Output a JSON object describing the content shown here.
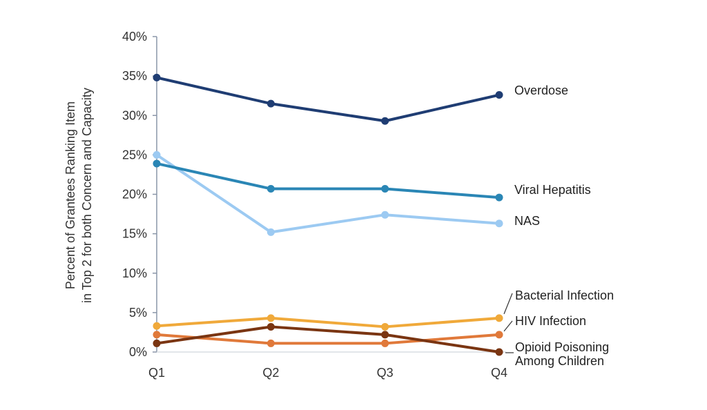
{
  "chart_data": {
    "type": "line",
    "title": "",
    "xlabel": "",
    "ylabel": [
      "Percent of Grantees Ranking Item",
      "in Top 2  for both Concern and Capacity"
    ],
    "categories": [
      "Q1",
      "Q2",
      "Q3",
      "Q4"
    ],
    "ylim": [
      0,
      40
    ],
    "yticks": [
      "0%",
      "5%",
      "10%",
      "15%",
      "20%",
      "25%",
      "30%",
      "35%",
      "40%"
    ],
    "ytick_values": [
      0,
      5,
      10,
      15,
      20,
      25,
      30,
      35,
      40
    ],
    "grid": false,
    "legend": "direct-labels-right",
    "series": [
      {
        "name": "Overdose",
        "color": "#1f3d73",
        "values": [
          34.8,
          31.5,
          29.3,
          32.6
        ]
      },
      {
        "name": "Viral Hepatitis",
        "color": "#2a86b5",
        "values": [
          23.9,
          20.7,
          20.7,
          19.6
        ]
      },
      {
        "name": "NAS",
        "color": "#9ccaf2",
        "values": [
          25.0,
          15.2,
          17.4,
          16.3
        ]
      },
      {
        "name": "Bacterial Infection",
        "color": "#f0a93a",
        "values": [
          3.3,
          4.3,
          3.2,
          4.3
        ]
      },
      {
        "name": "HIV Infection",
        "color": "#e0793a",
        "values": [
          2.2,
          1.1,
          1.1,
          2.2
        ]
      },
      {
        "name": "Opioid Poisoning Among Children",
        "label_lines": [
          "Opioid Poisoning",
          "Among Children"
        ],
        "color": "#7a3512",
        "values": [
          1.1,
          3.2,
          2.2,
          0.0
        ]
      }
    ]
  }
}
